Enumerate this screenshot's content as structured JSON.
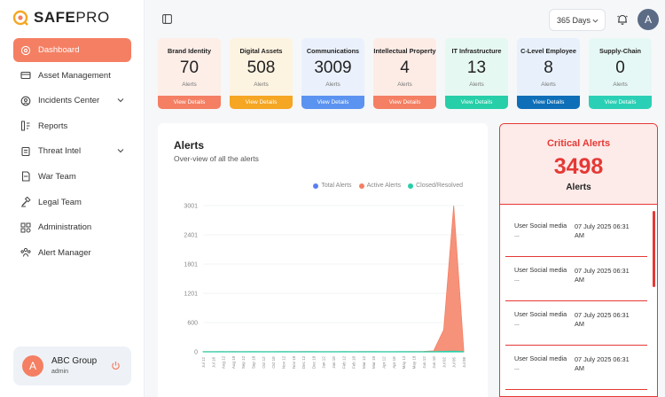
{
  "brand": {
    "part1": "SAFE",
    "part2": "PRO"
  },
  "sidebar": {
    "items": [
      {
        "label": "Dashboard",
        "icon": "dashboard-icon",
        "active": true
      },
      {
        "label": "Asset Management",
        "icon": "asset-icon"
      },
      {
        "label": "Incidents Center",
        "icon": "incidents-icon",
        "expandable": true
      },
      {
        "label": "Reports",
        "icon": "reports-icon"
      },
      {
        "label": "Threat Intel",
        "icon": "threat-icon",
        "expandable": true
      },
      {
        "label": "War Team",
        "icon": "war-team-icon"
      },
      {
        "label": "Legal Team",
        "icon": "legal-icon"
      },
      {
        "label": "Administration",
        "icon": "admin-icon"
      },
      {
        "label": "Alert Manager",
        "icon": "alert-manager-icon"
      }
    ],
    "user": {
      "initial": "A",
      "name": "ABC Group",
      "role": "admin"
    }
  },
  "header": {
    "range": "365 Days",
    "avatar_initial": "A"
  },
  "cards": [
    {
      "title": "Brand Identity",
      "value": "70",
      "label": "Alerts",
      "button": "View Details",
      "bg": "#fdeee8",
      "btn": "#f47f63"
    },
    {
      "title": "Digital Assets",
      "value": "508",
      "label": "Alerts",
      "button": "View Details",
      "bg": "#fdf3e1",
      "btn": "#f5a623"
    },
    {
      "title": "Communications",
      "value": "3009",
      "label": "Alerts",
      "button": "View Details",
      "bg": "#eaf1fc",
      "btn": "#5b93f0"
    },
    {
      "title": "Intellectual Property",
      "value": "4",
      "label": "Alerts",
      "button": "View Details",
      "bg": "#fdece6",
      "btn": "#f47f63"
    },
    {
      "title": "IT Infrastructure",
      "value": "13",
      "label": "Alerts",
      "button": "View Details",
      "bg": "#e6f8f2",
      "btn": "#26cfa8"
    },
    {
      "title": "C-Level Employee",
      "value": "8",
      "label": "Alerts",
      "button": "View Details",
      "bg": "#e8f1fb",
      "btn": "#0e6fb8"
    },
    {
      "title": "Supply-Chain",
      "value": "0",
      "label": "Alerts",
      "button": "View Details",
      "bg": "#e6f8f5",
      "btn": "#2ad0b5"
    }
  ],
  "alerts_panel": {
    "title": "Alerts",
    "subtitle": "Over-view of all the alerts",
    "legend": [
      {
        "name": "Total Alerts",
        "color": "#5b7ff0"
      },
      {
        "name": "Active Alerts",
        "color": "#f47f63"
      },
      {
        "name": "Closed/Resolved",
        "color": "#26cfa8"
      }
    ]
  },
  "chart_data": {
    "type": "area",
    "yticks": [
      0,
      600,
      1201,
      1801,
      2401,
      3001
    ],
    "ylim": [
      0,
      3001
    ],
    "x": [
      "Jul 12",
      "Jul 18",
      "Aug 12",
      "Aug 18",
      "Sep 12",
      "Sep 18",
      "Oct 12",
      "Oct 18",
      "Nov 12",
      "Nov 18",
      "Dec 12",
      "Dec 18",
      "Jan 12",
      "Jan 18",
      "Feb 12",
      "Feb 18",
      "Mar 12",
      "Mar 18",
      "Apr 12",
      "Apr 18",
      "May 12",
      "May 18",
      "Jun 12",
      "Jun 18",
      "Jul 02",
      "Jul 05",
      "Jul 08"
    ],
    "series": [
      {
        "name": "Active Alerts",
        "values": [
          5,
          3,
          4,
          6,
          3,
          5,
          4,
          3,
          5,
          4,
          6,
          3,
          5,
          4,
          3,
          5,
          6,
          4,
          5,
          3,
          4,
          6,
          8,
          20,
          450,
          3001,
          40
        ]
      },
      {
        "name": "Closed/Resolved",
        "values": [
          2,
          2,
          3,
          2,
          2,
          3,
          2,
          2,
          3,
          2,
          2,
          3,
          2,
          2,
          3,
          2,
          2,
          3,
          2,
          2,
          3,
          2,
          2,
          5,
          10,
          15,
          5
        ]
      }
    ]
  },
  "critical": {
    "title": "Critical Alerts",
    "value": "3498",
    "label": "Alerts",
    "items": [
      {
        "source": "User Social media",
        "ellipsis": "...",
        "time": "07 July 2025 06:31 AM"
      },
      {
        "source": "User Social media",
        "ellipsis": "...",
        "time": "07 July 2025 06:31 AM"
      },
      {
        "source": "User Social media",
        "ellipsis": "...",
        "time": "07 July 2025 06:31 AM"
      },
      {
        "source": "User Social media",
        "ellipsis": "...",
        "time": "07 July 2025 06:31 AM"
      }
    ]
  }
}
